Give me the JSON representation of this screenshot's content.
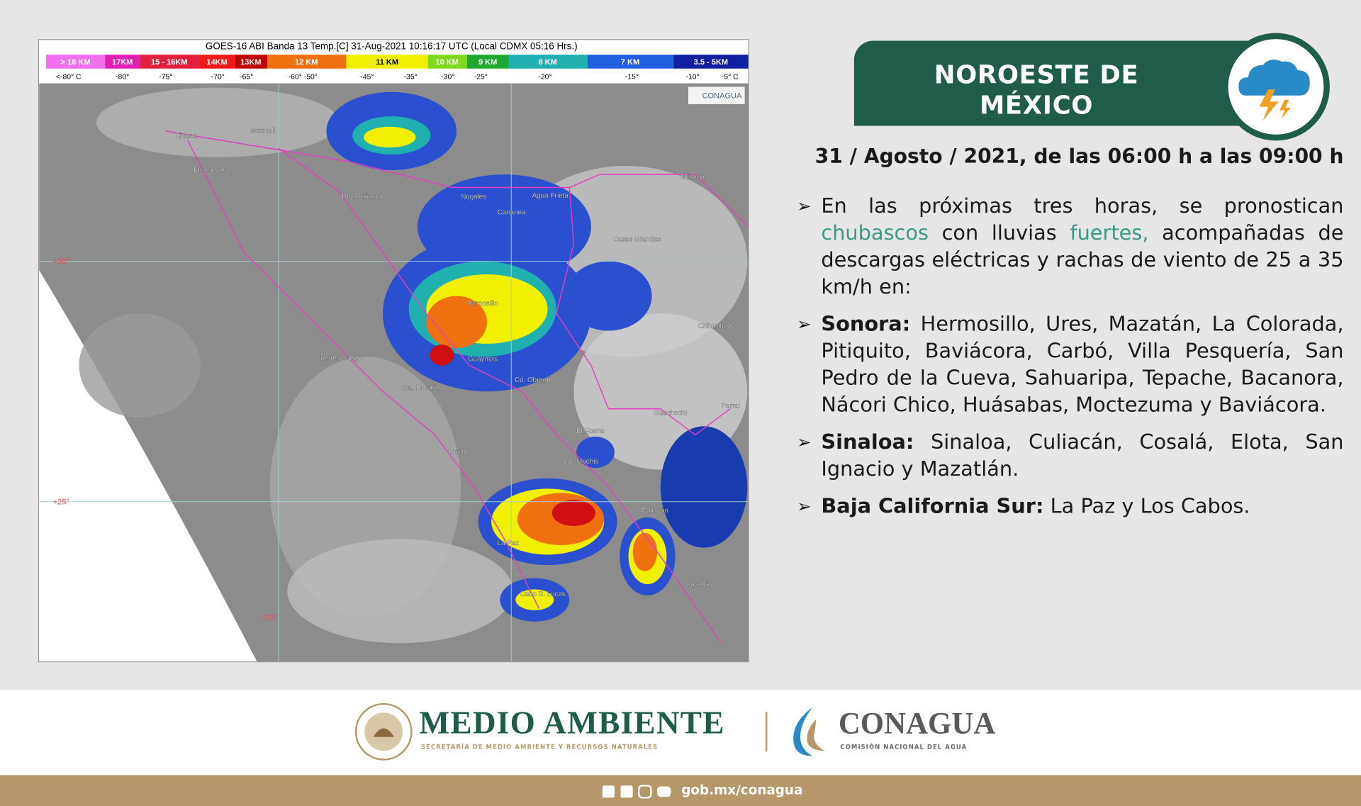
{
  "map": {
    "title": "GOES-16 ABI Banda 13 Temp.[C] 31-Aug-2021 10:16:17 UTC (Local CDMX  05:16 Hrs.)",
    "scale": [
      "> 18 KM",
      "17KM",
      "15 - 16KM",
      "14KM",
      "13KM",
      "12 KM",
      "11 KM",
      "10 KM",
      "9 KM",
      "8 KM",
      "7 KM",
      "3.5 - 5KM"
    ],
    "temps": [
      "<-80° C",
      "-80°",
      "-75°",
      "-70°",
      "-65°",
      "-60°  -50°",
      "-45°",
      "-35°",
      "-30°",
      "-25°",
      "-20°",
      "-15°",
      "-10°",
      "-5°  C"
    ],
    "watermark": "CONAGUA",
    "places": [
      "Tijuana",
      "Mexicali",
      "Ensenada",
      "Pto. Peñasco",
      "Nogales",
      "Agua Prieta",
      "Cananea",
      "Ojinaga",
      "Casas Grandes",
      "Hermosillo",
      "Chihuahua",
      "Guerrero Negro",
      "Guaymas",
      "Sta. Rosalía",
      "Cd. Obregón",
      "Guachochi",
      "Parral",
      "El Fuerte",
      "Los Mochis",
      "Loreto",
      "Culiacán",
      "La Paz",
      "Mazatlán",
      "Cabo S. Lucas"
    ],
    "grid_labels": [
      "+30°",
      "+25°",
      "-115°"
    ]
  },
  "header": {
    "title_line_1": "NOROESTE DE",
    "title_line_2": "MÉXICO",
    "date": "31 / Agosto / 2021, de las 06:00 h a las 09:00 h"
  },
  "bullets": [
    {
      "text_1": "En las próximas tres horas, se pronostican",
      "highlight_1": "chubascos",
      "text_2": "con lluvias",
      "highlight_2": "fuertes,",
      "text_3": "acompañadas de descargas eléctricas y rachas de viento de 25 a 35 km/h en:"
    },
    {
      "label": "Sonora:",
      "text": "Hermosillo, Ures, Mazatán, La Colorada, Pitiquito, Baviácora, Carbó, Villa Pesquería, San Pedro de la Cueva, Sahuaripa, Tepache, Bacanora, Nácori Chico, Huásabas, Moctezuma y Baviácora."
    },
    {
      "label": "Sinaloa:",
      "text": "Sinaloa, Culiacán, Cosalá, Elota, San Ignacio y Mazatlán."
    },
    {
      "label": "Baja California Sur:",
      "text": "La Paz y Los Cabos."
    }
  ],
  "footer": {
    "medio_ambiente": "MEDIO AMBIENTE",
    "medio_ambiente_sub": "SECRETARÍA DE MEDIO AMBIENTE Y RECURSOS NATURALES",
    "conagua": "CONAGUA",
    "conagua_sub": "COMISIÓN NACIONAL DEL AGUA",
    "url": "gob.mx/conagua"
  }
}
